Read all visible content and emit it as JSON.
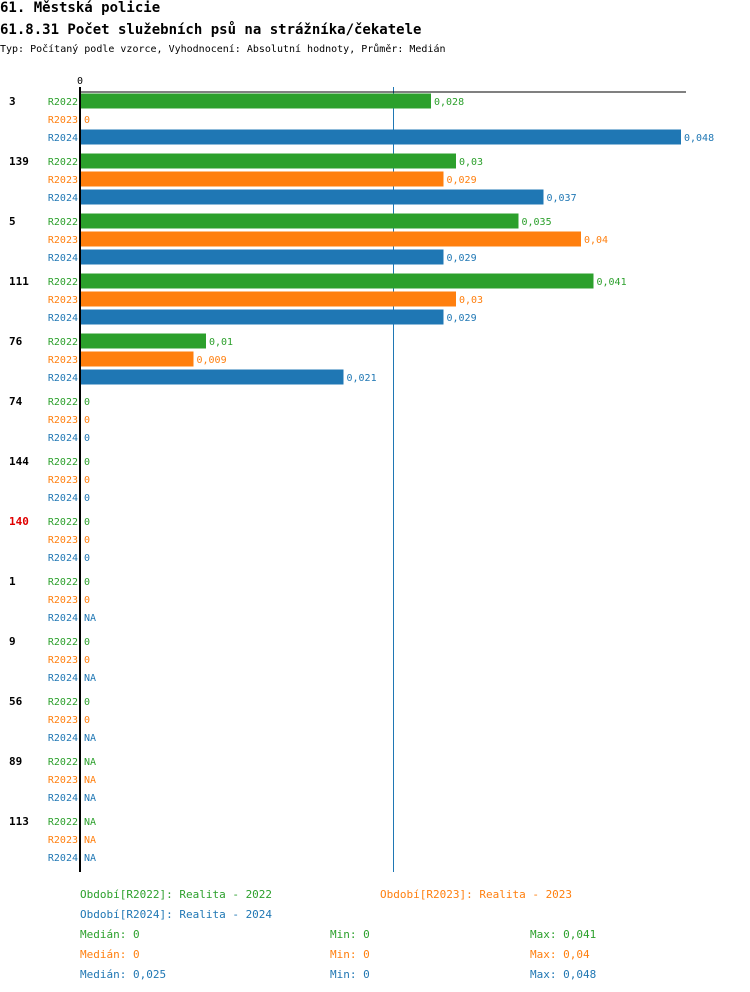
{
  "header": {
    "title": "61. Městská policie",
    "subtitle": "61.8.31 Počet služebních psů na strážníka/čekatele",
    "info": "Typ: Počítaný podle vzorce, Vyhodnocení: Absolutní hodnoty, Průměr: Medián"
  },
  "colors": {
    "R2022": "#2ca02c",
    "R2023": "#ff7f0e",
    "R2024": "#1f77b4",
    "highlight": "#e00000",
    "axis": "#000000",
    "median": "#1f77b4"
  },
  "chart_data": {
    "type": "bar",
    "orientation": "horizontal",
    "x_min": 0,
    "x_max": 0.048,
    "zero_label": "0",
    "median_value": 0.025,
    "series_names": [
      "R2022",
      "R2023",
      "R2024"
    ],
    "groups": [
      {
        "label": "3",
        "highlight": false,
        "values": [
          0.028,
          0,
          0.048
        ],
        "labels": [
          "0,028",
          "0",
          "0,048"
        ]
      },
      {
        "label": "139",
        "highlight": false,
        "values": [
          0.03,
          0.029,
          0.037
        ],
        "labels": [
          "0,03",
          "0,029",
          "0,037"
        ]
      },
      {
        "label": "5",
        "highlight": false,
        "values": [
          0.035,
          0.04,
          0.029
        ],
        "labels": [
          "0,035",
          "0,04",
          "0,029"
        ]
      },
      {
        "label": "111",
        "highlight": false,
        "values": [
          0.041,
          0.03,
          0.029
        ],
        "labels": [
          "0,041",
          "0,03",
          "0,029"
        ]
      },
      {
        "label": "76",
        "highlight": false,
        "values": [
          0.01,
          0.009,
          0.021
        ],
        "labels": [
          "0,01",
          "0,009",
          "0,021"
        ]
      },
      {
        "label": "74",
        "highlight": false,
        "values": [
          0,
          0,
          0
        ],
        "labels": [
          "0",
          "0",
          "0"
        ]
      },
      {
        "label": "144",
        "highlight": false,
        "values": [
          0,
          0,
          0
        ],
        "labels": [
          "0",
          "0",
          "0"
        ]
      },
      {
        "label": "140",
        "highlight": true,
        "values": [
          0,
          0,
          0
        ],
        "labels": [
          "0",
          "0",
          "0"
        ]
      },
      {
        "label": "1",
        "highlight": false,
        "values": [
          0,
          0,
          null
        ],
        "labels": [
          "0",
          "0",
          "NA"
        ]
      },
      {
        "label": "9",
        "highlight": false,
        "values": [
          0,
          0,
          null
        ],
        "labels": [
          "0",
          "0",
          "NA"
        ]
      },
      {
        "label": "56",
        "highlight": false,
        "values": [
          0,
          0,
          null
        ],
        "labels": [
          "0",
          "0",
          "NA"
        ]
      },
      {
        "label": "89",
        "highlight": false,
        "values": [
          null,
          null,
          null
        ],
        "labels": [
          "NA",
          "NA",
          "NA"
        ]
      },
      {
        "label": "113",
        "highlight": false,
        "values": [
          null,
          null,
          null
        ],
        "labels": [
          "NA",
          "NA",
          "NA"
        ]
      }
    ]
  },
  "legend": {
    "r2022": "Období[R2022]: Realita - 2022",
    "r2023": "Období[R2023]: Realita - 2023",
    "r2024": "Období[R2024]: Realita - 2024"
  },
  "stats": [
    {
      "median": "Medián: 0",
      "min": "Min: 0",
      "max": "Max: 0,041"
    },
    {
      "median": "Medián: 0",
      "min": "Min: 0",
      "max": "Max: 0,04"
    },
    {
      "median": "Medián: 0,025",
      "min": "Min: 0",
      "max": "Max: 0,048"
    }
  ]
}
